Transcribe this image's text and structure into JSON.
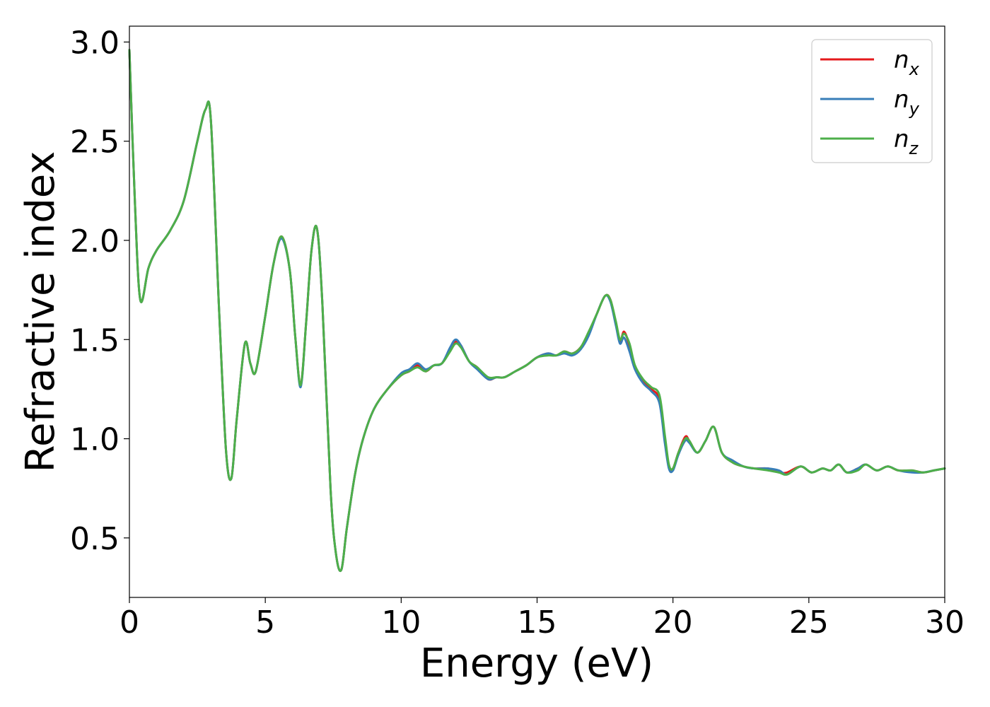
{
  "chart_data": {
    "type": "line",
    "title": "",
    "xlabel": "Energy (eV)",
    "ylabel": "Refractive index",
    "xlim": [
      0,
      30
    ],
    "ylim": [
      0.2,
      3.08
    ],
    "xticks": [
      0,
      5,
      10,
      15,
      20,
      25,
      30
    ],
    "yticks": [
      0.5,
      1.0,
      1.5,
      2.0,
      2.5,
      3.0
    ],
    "xtick_labels": [
      "0",
      "5",
      "10",
      "15",
      "20",
      "25",
      "30"
    ],
    "ytick_labels": [
      "0.5",
      "1.0",
      "1.5",
      "2.0",
      "2.5",
      "3.0"
    ],
    "grid": false,
    "legend_position": "top-right",
    "series": [
      {
        "name": "n",
        "subscript": "x",
        "color": "#e41a1c",
        "x": [
          0,
          0.2,
          0.4,
          0.7,
          1.0,
          1.5,
          2.0,
          2.5,
          2.8,
          3.0,
          3.3,
          3.55,
          3.75,
          3.95,
          4.25,
          4.45,
          4.65,
          5.0,
          5.3,
          5.6,
          5.9,
          6.1,
          6.3,
          6.5,
          6.7,
          6.9,
          7.1,
          7.4,
          7.6,
          7.8,
          8.0,
          8.3,
          8.6,
          9.0,
          9.5,
          10.0,
          10.3,
          10.6,
          10.9,
          11.2,
          11.5,
          11.8,
          12.0,
          12.2,
          12.5,
          12.8,
          13.2,
          13.5,
          13.8,
          14.2,
          14.6,
          15.0,
          15.4,
          15.7,
          16.0,
          16.3,
          16.6,
          16.9,
          17.2,
          17.5,
          17.7,
          17.9,
          18.05,
          18.2,
          18.4,
          18.6,
          18.9,
          19.2,
          19.5,
          19.7,
          19.85,
          20.0,
          20.2,
          20.45,
          20.6,
          20.9,
          21.2,
          21.5,
          21.8,
          22.2,
          22.6,
          23.0,
          23.5,
          23.9,
          24.2,
          24.7,
          25.1,
          25.5,
          25.8,
          26.1,
          26.4,
          26.8,
          27.1,
          27.5,
          27.9,
          28.3,
          28.8,
          29.2,
          29.6,
          30.0
        ],
        "y": [
          2.96,
          2.2,
          1.7,
          1.86,
          1.95,
          2.05,
          2.2,
          2.5,
          2.66,
          2.6,
          1.65,
          0.95,
          0.8,
          1.1,
          1.48,
          1.38,
          1.34,
          1.62,
          1.88,
          2.02,
          1.85,
          1.52,
          1.27,
          1.58,
          1.95,
          2.06,
          1.68,
          0.75,
          0.42,
          0.34,
          0.55,
          0.82,
          1.0,
          1.15,
          1.25,
          1.32,
          1.34,
          1.37,
          1.34,
          1.37,
          1.38,
          1.45,
          1.49,
          1.47,
          1.39,
          1.36,
          1.3,
          1.31,
          1.31,
          1.34,
          1.37,
          1.41,
          1.43,
          1.42,
          1.44,
          1.43,
          1.46,
          1.53,
          1.63,
          1.72,
          1.7,
          1.58,
          1.49,
          1.54,
          1.47,
          1.36,
          1.29,
          1.25,
          1.2,
          1.0,
          0.86,
          0.85,
          0.93,
          1.01,
          0.99,
          0.93,
          0.99,
          1.06,
          0.93,
          0.88,
          0.86,
          0.85,
          0.85,
          0.83,
          0.83,
          0.86,
          0.83,
          0.85,
          0.84,
          0.87,
          0.83,
          0.85,
          0.87,
          0.84,
          0.86,
          0.84,
          0.84,
          0.83,
          0.84,
          0.85
        ]
      },
      {
        "name": "n",
        "subscript": "y",
        "color": "#377eb8",
        "x": [
          0,
          0.2,
          0.4,
          0.7,
          1.0,
          1.5,
          2.0,
          2.5,
          2.8,
          3.0,
          3.3,
          3.55,
          3.75,
          3.95,
          4.25,
          4.45,
          4.65,
          5.0,
          5.3,
          5.6,
          5.9,
          6.1,
          6.3,
          6.5,
          6.7,
          6.9,
          7.1,
          7.4,
          7.6,
          7.8,
          8.0,
          8.3,
          8.6,
          9.0,
          9.5,
          10.0,
          10.3,
          10.6,
          10.9,
          11.2,
          11.5,
          11.8,
          12.0,
          12.2,
          12.5,
          12.8,
          13.2,
          13.5,
          13.8,
          14.2,
          14.6,
          15.0,
          15.4,
          15.7,
          16.0,
          16.3,
          16.6,
          16.9,
          17.2,
          17.5,
          17.7,
          17.9,
          18.05,
          18.2,
          18.4,
          18.6,
          18.9,
          19.2,
          19.5,
          19.7,
          19.85,
          20.0,
          20.2,
          20.45,
          20.6,
          20.9,
          21.2,
          21.5,
          21.8,
          22.2,
          22.6,
          23.0,
          23.5,
          23.9,
          24.2,
          24.7,
          25.1,
          25.5,
          25.8,
          26.1,
          26.4,
          26.8,
          27.1,
          27.5,
          27.9,
          28.3,
          28.8,
          29.2,
          29.6,
          30.0
        ],
        "y": [
          2.96,
          2.2,
          1.7,
          1.86,
          1.95,
          2.05,
          2.2,
          2.5,
          2.66,
          2.6,
          1.65,
          0.95,
          0.8,
          1.1,
          1.48,
          1.38,
          1.34,
          1.62,
          1.88,
          2.01,
          1.85,
          1.52,
          1.26,
          1.58,
          1.95,
          2.06,
          1.68,
          0.75,
          0.42,
          0.34,
          0.55,
          0.82,
          1.0,
          1.15,
          1.25,
          1.33,
          1.35,
          1.38,
          1.35,
          1.37,
          1.38,
          1.46,
          1.5,
          1.47,
          1.39,
          1.35,
          1.3,
          1.31,
          1.31,
          1.34,
          1.37,
          1.41,
          1.43,
          1.42,
          1.43,
          1.42,
          1.45,
          1.52,
          1.63,
          1.72,
          1.69,
          1.57,
          1.48,
          1.51,
          1.44,
          1.35,
          1.28,
          1.24,
          1.18,
          0.98,
          0.85,
          0.84,
          0.92,
          0.99,
          0.98,
          0.93,
          0.99,
          1.06,
          0.93,
          0.89,
          0.86,
          0.85,
          0.85,
          0.84,
          0.82,
          0.86,
          0.83,
          0.85,
          0.84,
          0.87,
          0.83,
          0.85,
          0.87,
          0.84,
          0.86,
          0.84,
          0.83,
          0.83,
          0.84,
          0.85
        ]
      },
      {
        "name": "n",
        "subscript": "z",
        "color": "#4daf4a",
        "x": [
          0,
          0.2,
          0.4,
          0.7,
          1.0,
          1.5,
          2.0,
          2.5,
          2.8,
          3.0,
          3.3,
          3.55,
          3.75,
          3.95,
          4.25,
          4.45,
          4.65,
          5.0,
          5.3,
          5.6,
          5.9,
          6.1,
          6.3,
          6.5,
          6.7,
          6.9,
          7.1,
          7.4,
          7.6,
          7.8,
          8.0,
          8.3,
          8.6,
          9.0,
          9.5,
          10.0,
          10.3,
          10.6,
          10.9,
          11.2,
          11.5,
          11.8,
          12.0,
          12.2,
          12.5,
          12.8,
          13.2,
          13.5,
          13.8,
          14.2,
          14.6,
          15.0,
          15.4,
          15.7,
          16.0,
          16.3,
          16.6,
          16.9,
          17.2,
          17.5,
          17.7,
          17.9,
          18.05,
          18.2,
          18.4,
          18.6,
          18.9,
          19.2,
          19.5,
          19.7,
          19.85,
          20.0,
          20.2,
          20.45,
          20.6,
          20.9,
          21.2,
          21.5,
          21.8,
          22.2,
          22.6,
          23.0,
          23.5,
          23.9,
          24.2,
          24.7,
          25.1,
          25.5,
          25.8,
          26.1,
          26.4,
          26.8,
          27.1,
          27.5,
          27.9,
          28.3,
          28.8,
          29.2,
          29.6,
          30.0
        ],
        "y": [
          2.96,
          2.2,
          1.7,
          1.86,
          1.95,
          2.05,
          2.2,
          2.5,
          2.66,
          2.6,
          1.65,
          0.95,
          0.8,
          1.1,
          1.48,
          1.38,
          1.34,
          1.62,
          1.88,
          2.02,
          1.85,
          1.52,
          1.27,
          1.58,
          1.95,
          2.06,
          1.68,
          0.75,
          0.42,
          0.34,
          0.55,
          0.82,
          1.0,
          1.15,
          1.25,
          1.32,
          1.34,
          1.36,
          1.34,
          1.37,
          1.38,
          1.44,
          1.48,
          1.46,
          1.39,
          1.36,
          1.31,
          1.31,
          1.31,
          1.34,
          1.37,
          1.41,
          1.42,
          1.42,
          1.44,
          1.43,
          1.46,
          1.54,
          1.63,
          1.72,
          1.7,
          1.59,
          1.5,
          1.53,
          1.48,
          1.37,
          1.3,
          1.26,
          1.22,
          1.02,
          0.87,
          0.85,
          0.93,
          1.0,
          0.99,
          0.93,
          0.99,
          1.06,
          0.93,
          0.88,
          0.86,
          0.85,
          0.84,
          0.83,
          0.82,
          0.86,
          0.83,
          0.85,
          0.84,
          0.87,
          0.83,
          0.84,
          0.87,
          0.84,
          0.86,
          0.84,
          0.84,
          0.83,
          0.84,
          0.85
        ]
      }
    ]
  }
}
